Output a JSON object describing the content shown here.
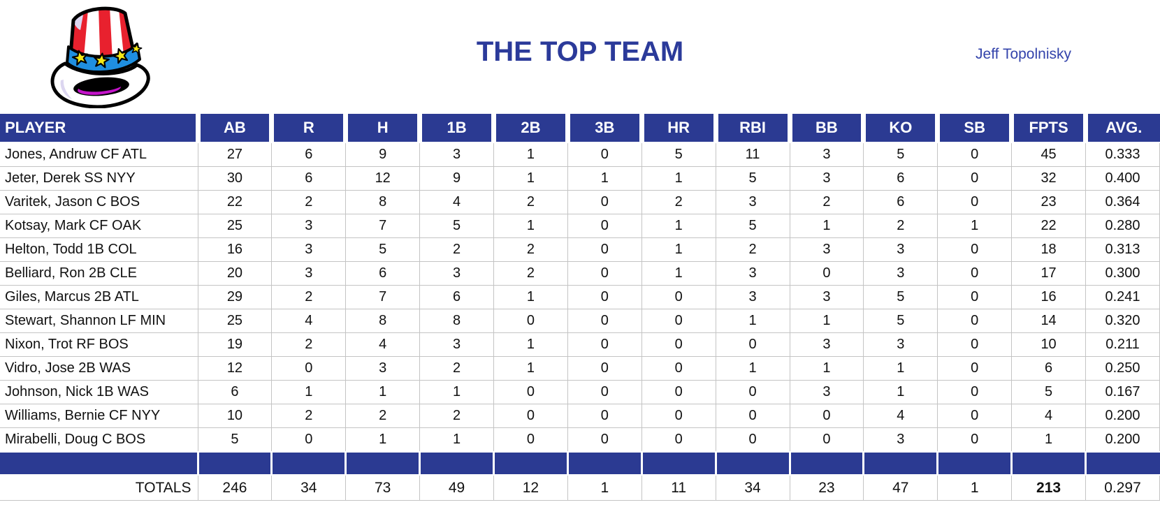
{
  "header": {
    "title": "THE TOP TEAM",
    "author": "Jeff Topolnisky",
    "logo_icon": "uncle-sam-top-hat"
  },
  "colors": {
    "table_header_bg": "#2B3A92",
    "title_text": "#2B3A9A",
    "author_text": "#3343AB",
    "gridline": "#C4C4C4",
    "hat_red": "#E8212E",
    "hat_band_blue": "#1F8FE0",
    "hat_star_yellow": "#F4E816",
    "hat_brim_magenta": "#C313C9"
  },
  "table": {
    "columns": [
      "PLAYER",
      "AB",
      "R",
      "H",
      "1B",
      "2B",
      "3B",
      "HR",
      "RBI",
      "BB",
      "KO",
      "SB",
      "FPTS",
      "AVG."
    ],
    "rows": [
      {
        "player": "Jones, Andruw CF ATL",
        "stats": [
          "27",
          "6",
          "9",
          "3",
          "1",
          "0",
          "5",
          "11",
          "3",
          "5",
          "0",
          "45",
          "0.333"
        ]
      },
      {
        "player": "Jeter, Derek SS NYY",
        "stats": [
          "30",
          "6",
          "12",
          "9",
          "1",
          "1",
          "1",
          "5",
          "3",
          "6",
          "0",
          "32",
          "0.400"
        ]
      },
      {
        "player": "Varitek, Jason C BOS",
        "stats": [
          "22",
          "2",
          "8",
          "4",
          "2",
          "0",
          "2",
          "3",
          "2",
          "6",
          "0",
          "23",
          "0.364"
        ]
      },
      {
        "player": "Kotsay, Mark CF OAK",
        "stats": [
          "25",
          "3",
          "7",
          "5",
          "1",
          "0",
          "1",
          "5",
          "1",
          "2",
          "1",
          "22",
          "0.280"
        ]
      },
      {
        "player": "Helton, Todd 1B COL",
        "stats": [
          "16",
          "3",
          "5",
          "2",
          "2",
          "0",
          "1",
          "2",
          "3",
          "3",
          "0",
          "18",
          "0.313"
        ]
      },
      {
        "player": "Belliard, Ron 2B CLE",
        "stats": [
          "20",
          "3",
          "6",
          "3",
          "2",
          "0",
          "1",
          "3",
          "0",
          "3",
          "0",
          "17",
          "0.300"
        ]
      },
      {
        "player": "Giles, Marcus 2B ATL",
        "stats": [
          "29",
          "2",
          "7",
          "6",
          "1",
          "0",
          "0",
          "3",
          "3",
          "5",
          "0",
          "16",
          "0.241"
        ]
      },
      {
        "player": "Stewart, Shannon LF MIN",
        "stats": [
          "25",
          "4",
          "8",
          "8",
          "0",
          "0",
          "0",
          "1",
          "1",
          "5",
          "0",
          "14",
          "0.320"
        ]
      },
      {
        "player": "Nixon, Trot RF BOS",
        "stats": [
          "19",
          "2",
          "4",
          "3",
          "1",
          "0",
          "0",
          "0",
          "3",
          "3",
          "0",
          "10",
          "0.211"
        ]
      },
      {
        "player": "Vidro, Jose 2B WAS",
        "stats": [
          "12",
          "0",
          "3",
          "2",
          "1",
          "0",
          "0",
          "1",
          "1",
          "1",
          "0",
          "6",
          "0.250"
        ]
      },
      {
        "player": "Johnson, Nick 1B WAS",
        "stats": [
          "6",
          "1",
          "1",
          "1",
          "0",
          "0",
          "0",
          "0",
          "3",
          "1",
          "0",
          "5",
          "0.167"
        ]
      },
      {
        "player": "Williams, Bernie CF NYY",
        "stats": [
          "10",
          "2",
          "2",
          "2",
          "0",
          "0",
          "0",
          "0",
          "0",
          "4",
          "0",
          "4",
          "0.200"
        ]
      },
      {
        "player": "Mirabelli, Doug C BOS",
        "stats": [
          "5",
          "0",
          "1",
          "1",
          "0",
          "0",
          "0",
          "0",
          "0",
          "3",
          "0",
          "1",
          "0.200"
        ]
      }
    ],
    "totals": {
      "label": "TOTALS",
      "stats": [
        "246",
        "34",
        "73",
        "49",
        "12",
        "1",
        "11",
        "34",
        "23",
        "47",
        "1",
        "213",
        "0.297"
      ],
      "bold_stat_index": 11
    }
  }
}
